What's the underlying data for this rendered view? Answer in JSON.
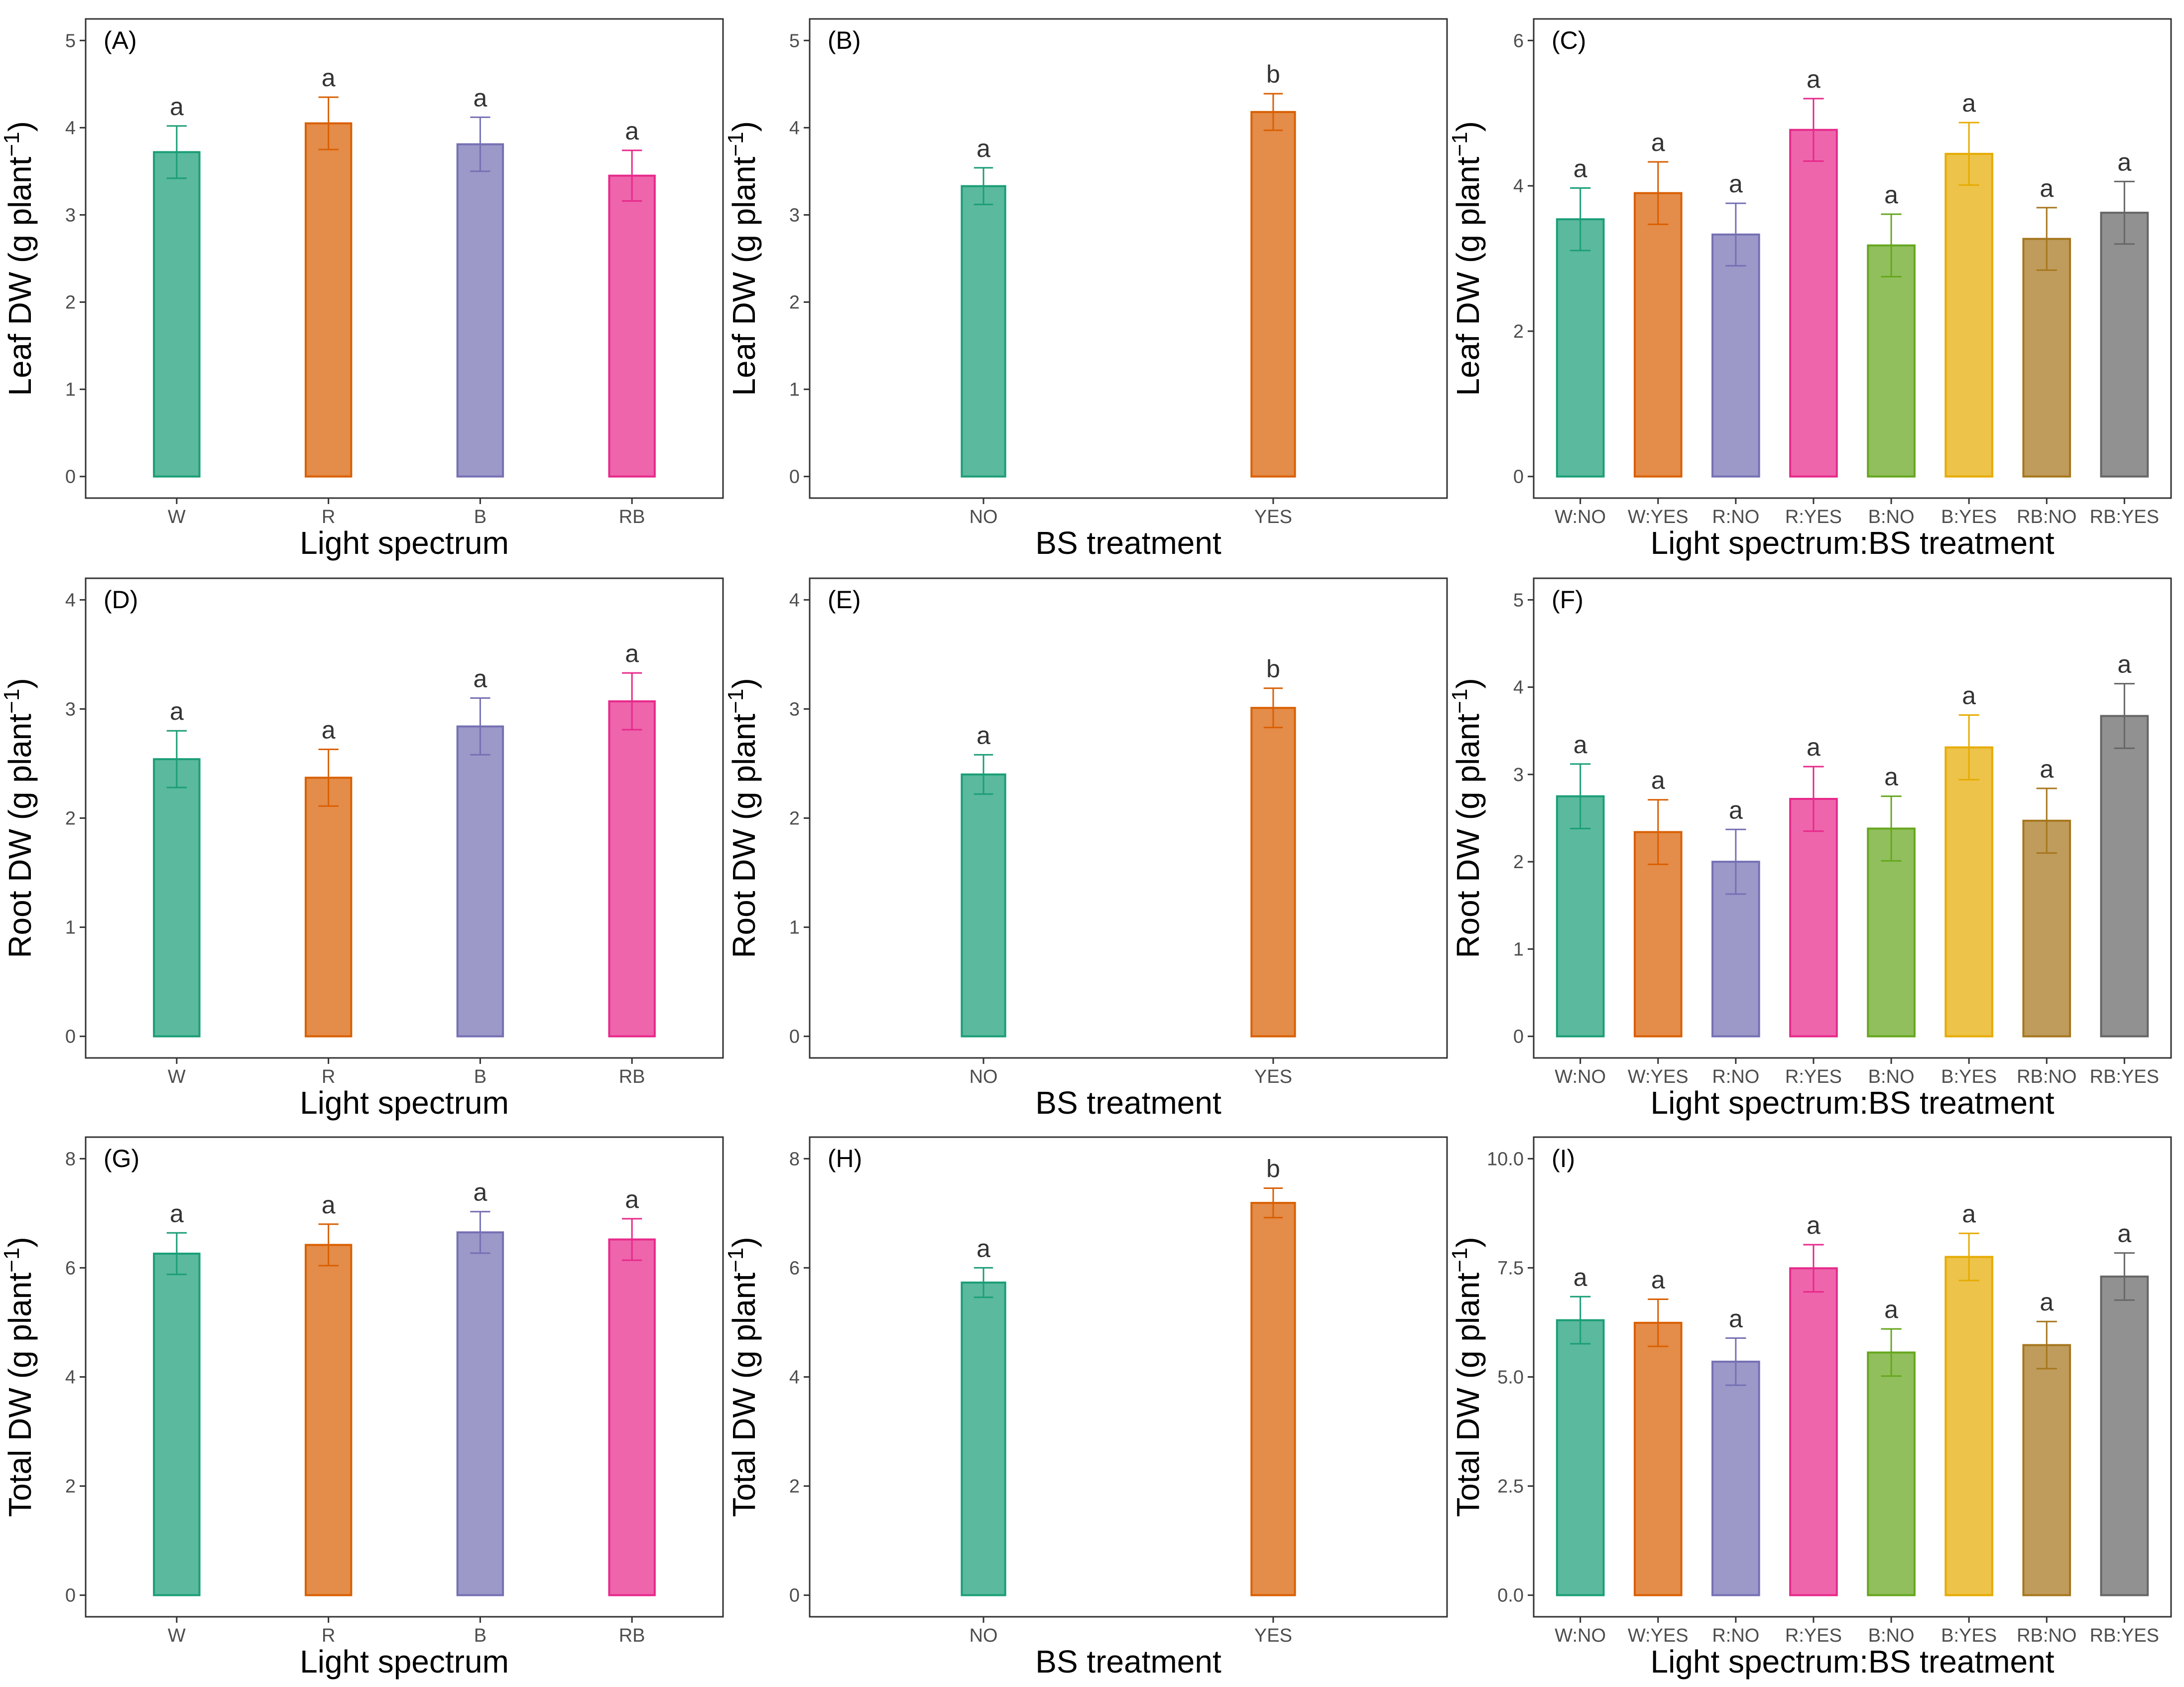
{
  "colors": {
    "W": "#1b9e77",
    "R": "#d95f02",
    "B": "#7570b3",
    "RB": "#e7298a",
    "NO": "#1b9e77",
    "YES": "#d95f02",
    "W:NO": "#1b9e77",
    "W:YES": "#d95f02",
    "R:NO": "#7570b3",
    "R:YES": "#e7298a",
    "B:NO": "#66a61e",
    "B:YES": "#e6ab02",
    "RB:NO": "#a6761d",
    "RB:YES": "#666666"
  },
  "chart_data": [
    {
      "panel": "(A)",
      "type": "bar",
      "xlabel": "Light spectrum",
      "ylabel": "Leaf DW (g plant",
      "ylabel_sup": "−1",
      "ylabel_close": ")",
      "categories": [
        "W",
        "R",
        "B",
        "RB"
      ],
      "values": [
        3.72,
        4.05,
        3.81,
        3.45
      ],
      "errors": [
        0.3,
        0.3,
        0.31,
        0.29
      ],
      "letters": [
        "a",
        "a",
        "a",
        "a"
      ],
      "ylim": [
        0,
        5
      ],
      "yticks": [
        0,
        1,
        2,
        3,
        4,
        5
      ],
      "ytick_labels": [
        "0",
        "1",
        "2",
        "3",
        "4",
        "5"
      ]
    },
    {
      "panel": "(B)",
      "type": "bar",
      "xlabel": "BS treatment",
      "ylabel": "Leaf DW (g plant",
      "ylabel_sup": "−1",
      "ylabel_close": ")",
      "categories": [
        "NO",
        "YES"
      ],
      "values": [
        3.33,
        4.18
      ],
      "errors": [
        0.21,
        0.21
      ],
      "letters": [
        "a",
        "b"
      ],
      "ylim": [
        0,
        5
      ],
      "yticks": [
        0,
        1,
        2,
        3,
        4,
        5
      ],
      "ytick_labels": [
        "0",
        "1",
        "2",
        "3",
        "4",
        "5"
      ]
    },
    {
      "panel": "(C)",
      "type": "bar",
      "xlabel": "Light spectrum:BS treatment",
      "ylabel": "Leaf DW (g plant",
      "ylabel_sup": "−1",
      "ylabel_close": ")",
      "categories": [
        "W:NO",
        "W:YES",
        "R:NO",
        "R:YES",
        "B:NO",
        "B:YES",
        "RB:NO",
        "RB:YES"
      ],
      "values": [
        3.54,
        3.9,
        3.33,
        4.77,
        3.18,
        4.44,
        3.27,
        3.63
      ],
      "errors": [
        0.43,
        0.43,
        0.43,
        0.43,
        0.43,
        0.43,
        0.43,
        0.43
      ],
      "letters": [
        "a",
        "a",
        "a",
        "a",
        "a",
        "a",
        "a",
        "a"
      ],
      "ylim": [
        0,
        6
      ],
      "yticks": [
        0,
        2,
        4,
        6
      ],
      "ytick_labels": [
        "0",
        "2",
        "4",
        "6"
      ]
    },
    {
      "panel": "(D)",
      "type": "bar",
      "xlabel": "Light spectrum",
      "ylabel": "Root DW (g plant",
      "ylabel_sup": "−1",
      "ylabel_close": ")",
      "categories": [
        "W",
        "R",
        "B",
        "RB"
      ],
      "values": [
        2.54,
        2.37,
        2.84,
        3.07
      ],
      "errors": [
        0.26,
        0.26,
        0.26,
        0.26
      ],
      "letters": [
        "a",
        "a",
        "a",
        "a"
      ],
      "ylim": [
        0,
        4
      ],
      "yticks": [
        0,
        1,
        2,
        3,
        4
      ],
      "ytick_labels": [
        "0",
        "1",
        "2",
        "3",
        "4"
      ]
    },
    {
      "panel": "(E)",
      "type": "bar",
      "xlabel": "BS treatment",
      "ylabel": "Root DW (g plant",
      "ylabel_sup": "−1",
      "ylabel_close": ")",
      "categories": [
        "NO",
        "YES"
      ],
      "values": [
        2.4,
        3.01
      ],
      "errors": [
        0.18,
        0.18
      ],
      "letters": [
        "a",
        "b"
      ],
      "ylim": [
        0,
        4
      ],
      "yticks": [
        0,
        1,
        2,
        3,
        4
      ],
      "ytick_labels": [
        "0",
        "1",
        "2",
        "3",
        "4"
      ]
    },
    {
      "panel": "(F)",
      "type": "bar",
      "xlabel": "Light spectrum:BS treatment",
      "ylabel": "Root DW (g plant",
      "ylabel_sup": "−1",
      "ylabel_close": ")",
      "categories": [
        "W:NO",
        "W:YES",
        "R:NO",
        "R:YES",
        "B:NO",
        "B:YES",
        "RB:NO",
        "RB:YES"
      ],
      "values": [
        2.75,
        2.34,
        2.0,
        2.72,
        2.38,
        3.31,
        2.47,
        3.67
      ],
      "errors": [
        0.37,
        0.37,
        0.37,
        0.37,
        0.37,
        0.37,
        0.37,
        0.37
      ],
      "letters": [
        "a",
        "a",
        "a",
        "a",
        "a",
        "a",
        "a",
        "a"
      ],
      "ylim": [
        0,
        5
      ],
      "yticks": [
        0,
        1,
        2,
        3,
        4,
        5
      ],
      "ytick_labels": [
        "0",
        "1",
        "2",
        "3",
        "4",
        "5"
      ]
    },
    {
      "panel": "(G)",
      "type": "bar",
      "xlabel": "Light spectrum",
      "ylabel": "Total DW (g plant",
      "ylabel_sup": "−1",
      "ylabel_close": ")",
      "categories": [
        "W",
        "R",
        "B",
        "RB"
      ],
      "values": [
        6.26,
        6.42,
        6.65,
        6.52
      ],
      "errors": [
        0.38,
        0.38,
        0.38,
        0.38
      ],
      "letters": [
        "a",
        "a",
        "a",
        "a"
      ],
      "ylim": [
        0,
        8
      ],
      "yticks": [
        0,
        2,
        4,
        6,
        8
      ],
      "ytick_labels": [
        "0",
        "2",
        "4",
        "6",
        "8"
      ]
    },
    {
      "panel": "(H)",
      "type": "bar",
      "xlabel": "BS treatment",
      "ylabel": "Total DW (g plant",
      "ylabel_sup": "−1",
      "ylabel_close": ")",
      "categories": [
        "NO",
        "YES"
      ],
      "values": [
        5.73,
        7.19
      ],
      "errors": [
        0.27,
        0.27
      ],
      "letters": [
        "a",
        "b"
      ],
      "ylim": [
        0,
        8
      ],
      "yticks": [
        0,
        2,
        4,
        6,
        8
      ],
      "ytick_labels": [
        "0",
        "2",
        "4",
        "6",
        "8"
      ]
    },
    {
      "panel": "(I)",
      "type": "bar",
      "xlabel": "Light spectrum:BS treatment",
      "ylabel": "Total DW (g plant",
      "ylabel_sup": "−1",
      "ylabel_close": ")",
      "categories": [
        "W:NO",
        "W:YES",
        "R:NO",
        "R:YES",
        "B:NO",
        "B:YES",
        "RB:NO",
        "RB:YES"
      ],
      "values": [
        6.3,
        6.24,
        5.35,
        7.49,
        5.56,
        7.75,
        5.73,
        7.3
      ],
      "errors": [
        0.54,
        0.54,
        0.54,
        0.54,
        0.54,
        0.54,
        0.54,
        0.54
      ],
      "letters": [
        "a",
        "a",
        "a",
        "a",
        "a",
        "a",
        "a",
        "a"
      ],
      "ylim": [
        0,
        10
      ],
      "yticks": [
        0,
        2.5,
        5,
        7.5,
        10
      ],
      "ytick_labels": [
        "0.0",
        "2.5",
        "5.0",
        "7.5",
        "10.0"
      ]
    }
  ]
}
